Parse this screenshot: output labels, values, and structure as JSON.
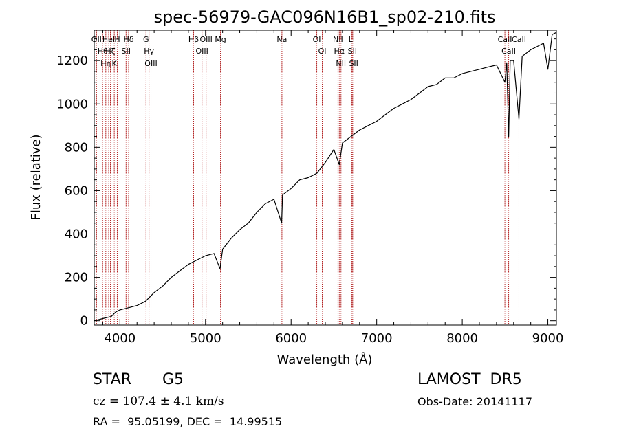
{
  "chart_data": {
    "type": "line",
    "title": "spec-56979-GAC096N16B1_sp02-210.fits",
    "xlabel": "Wavelength (Å)",
    "ylabel": "Flux (relative)",
    "xlim": [
      3700,
      9100
    ],
    "ylim": [
      -20,
      1340
    ],
    "xticks": [
      4000,
      5000,
      6000,
      7000,
      8000,
      9000
    ],
    "yticks": [
      0,
      200,
      400,
      600,
      800,
      1000,
      1200
    ],
    "grid": false,
    "series": [
      {
        "color": "#000000",
        "points": [
          [
            3700,
            0
          ],
          [
            3800,
            10
          ],
          [
            3900,
            20
          ],
          [
            3950,
            40
          ],
          [
            4000,
            50
          ],
          [
            4100,
            60
          ],
          [
            4200,
            70
          ],
          [
            4300,
            90
          ],
          [
            4400,
            130
          ],
          [
            4500,
            160
          ],
          [
            4600,
            200
          ],
          [
            4700,
            230
          ],
          [
            4800,
            260
          ],
          [
            4900,
            280
          ],
          [
            5000,
            300
          ],
          [
            5100,
            310
          ],
          [
            5170,
            240
          ],
          [
            5200,
            330
          ],
          [
            5300,
            380
          ],
          [
            5400,
            420
          ],
          [
            5500,
            450
          ],
          [
            5600,
            500
          ],
          [
            5700,
            540
          ],
          [
            5800,
            560
          ],
          [
            5890,
            450
          ],
          [
            5900,
            580
          ],
          [
            6000,
            610
          ],
          [
            6100,
            650
          ],
          [
            6200,
            660
          ],
          [
            6300,
            680
          ],
          [
            6400,
            730
          ],
          [
            6500,
            790
          ],
          [
            6563,
            720
          ],
          [
            6600,
            820
          ],
          [
            6700,
            850
          ],
          [
            6800,
            880
          ],
          [
            6900,
            900
          ],
          [
            7000,
            920
          ],
          [
            7100,
            950
          ],
          [
            7200,
            980
          ],
          [
            7300,
            1000
          ],
          [
            7400,
            1020
          ],
          [
            7500,
            1050
          ],
          [
            7600,
            1080
          ],
          [
            7700,
            1090
          ],
          [
            7800,
            1120
          ],
          [
            7900,
            1120
          ],
          [
            8000,
            1140
          ],
          [
            8100,
            1150
          ],
          [
            8200,
            1160
          ],
          [
            8300,
            1170
          ],
          [
            8400,
            1180
          ],
          [
            8498,
            1100
          ],
          [
            8520,
            1190
          ],
          [
            8542,
            850
          ],
          [
            8560,
            1200
          ],
          [
            8600,
            1200
          ],
          [
            8662,
            930
          ],
          [
            8700,
            1220
          ],
          [
            8800,
            1250
          ],
          [
            8900,
            1270
          ],
          [
            8950,
            1280
          ],
          [
            9000,
            1160
          ],
          [
            9050,
            1320
          ],
          [
            9100,
            1330
          ]
        ]
      }
    ],
    "lines": [
      {
        "x": 3727,
        "label": "OII"
      },
      {
        "x": 3798,
        "label": "Hθ"
      },
      {
        "x": 3835,
        "label": "Hη"
      },
      {
        "x": 3869,
        "label": "HeI"
      },
      {
        "x": 3889,
        "label": "Hζ"
      },
      {
        "x": 3934,
        "label": "K"
      },
      {
        "x": 3969,
        "label": "H"
      },
      {
        "x": 4072,
        "label": "SII"
      },
      {
        "x": 4102,
        "label": "Hδ"
      },
      {
        "x": 4305,
        "label": "G"
      },
      {
        "x": 4340,
        "label": "Hγ"
      },
      {
        "x": 4363,
        "label": "OIII"
      },
      {
        "x": 4861,
        "label": "Hβ"
      },
      {
        "x": 4959,
        "label": "OIII"
      },
      {
        "x": 5007,
        "label": "OIII"
      },
      {
        "x": 5175,
        "label": "Mg"
      },
      {
        "x": 5893,
        "label": "Na"
      },
      {
        "x": 6300,
        "label": "OI"
      },
      {
        "x": 6364,
        "label": "OI"
      },
      {
        "x": 6548,
        "label": "NII"
      },
      {
        "x": 6563,
        "label": "Hα"
      },
      {
        "x": 6583,
        "label": "NII"
      },
      {
        "x": 6708,
        "label": "Li"
      },
      {
        "x": 6716,
        "label": "SII"
      },
      {
        "x": 6731,
        "label": "SII"
      },
      {
        "x": 8498,
        "label": "CaII"
      },
      {
        "x": 8542,
        "label": "CaII"
      },
      {
        "x": 8662,
        "label": "CaII"
      }
    ],
    "annotation_color": "#b22222"
  },
  "info": {
    "object_class": "STAR",
    "subclass": "G5",
    "survey": "LAMOST  DR5",
    "cz": "cz = 107.4 ± 4.1 km/s",
    "obs_date": "Obs-Date: 20141117",
    "coords": "RA =  95.05199, DEC =  14.99515"
  }
}
